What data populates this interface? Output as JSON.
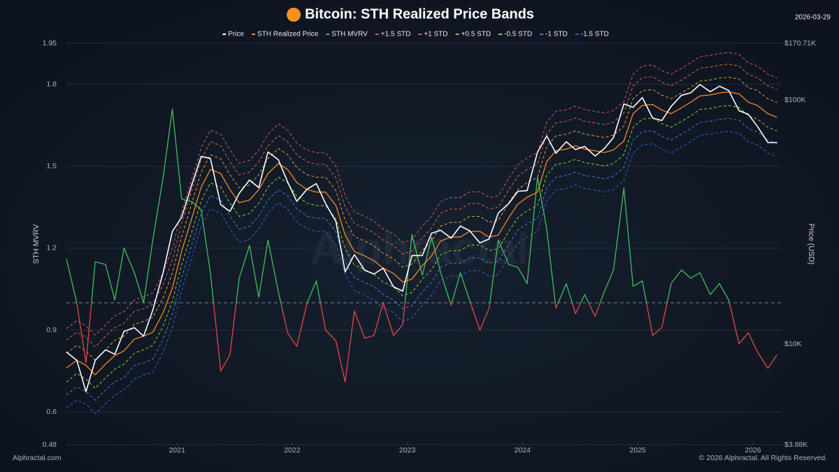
{
  "chart_data": {
    "type": "line",
    "title": "Bitcoin: STH Realized Price Bands",
    "date": "2026-03-29",
    "ylabel": "STH MVRV",
    "y2label": "Price (USD)",
    "watermark": "Alphractal",
    "source": "Alphractal.com",
    "copyright": "© 2026 Alphractal. All Rights Reserved.",
    "xlim": [
      2020.04,
      2026.25
    ],
    "xticks": [
      2021,
      2022,
      2023,
      2024,
      2025,
      2026
    ],
    "ylim": [
      0.48,
      1.95
    ],
    "yticks": [
      0.48,
      0.6,
      0.9,
      1.2,
      1.5,
      1.8,
      1.95
    ],
    "y2lim": [
      3880,
      170710
    ],
    "y2scale": "log",
    "y2ticks": [
      {
        "value": 3880,
        "label": "$3.88K"
      },
      {
        "value": 10000,
        "label": "$10K"
      },
      {
        "value": 100000,
        "label": "$100K"
      },
      {
        "value": 170710,
        "label": "$170.71K"
      }
    ],
    "grid": true,
    "legend": "top",
    "x": [
      2020.04,
      2020.13,
      2020.21,
      2020.29,
      2020.38,
      2020.46,
      2020.54,
      2020.63,
      2020.71,
      2020.79,
      2020.88,
      2020.96,
      2021.04,
      2021.13,
      2021.21,
      2021.29,
      2021.38,
      2021.46,
      2021.54,
      2021.63,
      2021.71,
      2021.79,
      2021.88,
      2021.96,
      2022.04,
      2022.13,
      2022.21,
      2022.29,
      2022.38,
      2022.46,
      2022.54,
      2022.63,
      2022.71,
      2022.79,
      2022.88,
      2022.96,
      2023.04,
      2023.13,
      2023.21,
      2023.29,
      2023.38,
      2023.46,
      2023.54,
      2023.63,
      2023.71,
      2023.79,
      2023.88,
      2023.96,
      2024.04,
      2024.13,
      2024.21,
      2024.29,
      2024.38,
      2024.46,
      2024.54,
      2024.63,
      2024.71,
      2024.79,
      2024.88,
      2024.96,
      2025.04,
      2025.13,
      2025.21,
      2025.29,
      2025.38,
      2025.46,
      2025.54,
      2025.63,
      2025.71,
      2025.79,
      2025.88,
      2025.96,
      2026.04,
      2026.13,
      2026.21
    ],
    "series": [
      {
        "name": "Price",
        "color": "#ffffff",
        "axis": "y2",
        "width": 1.6,
        "values": [
          9300,
          8600,
          6400,
          8600,
          9500,
          9100,
          11300,
          11700,
          10800,
          13800,
          19700,
          29000,
          33100,
          45200,
          58800,
          57700,
          37300,
          35000,
          41500,
          47100,
          43800,
          61300,
          57000,
          46300,
          38500,
          43200,
          45500,
          37700,
          31800,
          19800,
          23300,
          20100,
          19400,
          20500,
          17200,
          16500,
          23100,
          23100,
          28500,
          29300,
          27200,
          30500,
          29200,
          26000,
          27000,
          34500,
          37700,
          42300,
          42600,
          61200,
          71300,
          60600,
          67500,
          62700,
          64600,
          59000,
          63300,
          70200,
          96400,
          93400,
          102400,
          84400,
          82500,
          94200,
          104600,
          107100,
          115800,
          108200,
          114000,
          109500,
          90400,
          87500,
          78000,
          67000,
          67000
        ]
      },
      {
        "name": "STH Realized Price",
        "color": "#f5872a",
        "axis": "y2",
        "width": 1.3,
        "values": [
          8000,
          8600,
          8200,
          7500,
          8300,
          9000,
          9400,
          10500,
          10800,
          11200,
          13500,
          17000,
          24000,
          33000,
          44000,
          52000,
          50000,
          43000,
          38000,
          39000,
          43000,
          50000,
          55000,
          52000,
          46000,
          43000,
          42000,
          42000,
          37000,
          28000,
          24000,
          23000,
          22000,
          20500,
          19500,
          18000,
          18500,
          21000,
          23000,
          26500,
          27500,
          27500,
          29000,
          29000,
          27500,
          28000,
          33000,
          37500,
          40000,
          42000,
          56000,
          62000,
          63000,
          65000,
          63000,
          62000,
          61000,
          62500,
          68000,
          88000,
          95000,
          96000,
          91000,
          88000,
          93000,
          98000,
          104000,
          105000,
          107000,
          108000,
          106000,
          98000,
          95000,
          88000,
          85000
        ]
      },
      {
        "name": "STH MVRV",
        "color": "#5b8def",
        "color_above": "#3fbf5f",
        "color_below": "#e04848",
        "threshold": 1,
        "axis": "y",
        "width": 1.3,
        "values": [
          1.16,
          1.0,
          0.78,
          1.15,
          1.14,
          1.01,
          1.2,
          1.11,
          1.0,
          1.23,
          1.46,
          1.71,
          1.38,
          1.37,
          1.34,
          1.11,
          0.75,
          0.81,
          1.09,
          1.21,
          1.02,
          1.23,
          1.04,
          0.89,
          0.84,
          1.0,
          1.08,
          0.9,
          0.86,
          0.71,
          0.97,
          0.87,
          0.88,
          1.0,
          0.88,
          0.92,
          1.25,
          1.1,
          1.24,
          1.11,
          0.99,
          1.11,
          1.01,
          0.9,
          0.98,
          1.23,
          1.14,
          1.13,
          1.07,
          1.46,
          1.27,
          0.98,
          1.07,
          0.96,
          1.03,
          0.95,
          1.04,
          1.12,
          1.42,
          1.06,
          1.08,
          0.88,
          0.91,
          1.07,
          1.12,
          1.09,
          1.11,
          1.03,
          1.07,
          1.01,
          0.85,
          0.89,
          0.82,
          0.76,
          0.81
        ]
      },
      {
        "name": "+1.5 STD",
        "color": "#d9536f",
        "axis": "y2",
        "dashed": true,
        "width": 1,
        "values": [
          11600,
          12500,
          11900,
          10900,
          12000,
          13100,
          13600,
          15200,
          15700,
          16200,
          19600,
          24700,
          34800,
          47900,
          63800,
          75400,
          72500,
          62400,
          55100,
          56600,
          62400,
          72500,
          79800,
          75400,
          66700,
          62400,
          60900,
          60900,
          53700,
          40600,
          34800,
          33400,
          31900,
          29700,
          28300,
          26100,
          26800,
          30500,
          33400,
          38400,
          39900,
          39900,
          42100,
          42100,
          39900,
          40600,
          47900,
          54400,
          58000,
          60900,
          81200,
          89900,
          91400,
          94300,
          91400,
          89900,
          88500,
          90600,
          98600,
          127600,
          137800,
          139200,
          132000,
          127600,
          134900,
          142100,
          150800,
          152300,
          155200,
          156600,
          153700,
          142100,
          137800,
          127600,
          123300
        ]
      },
      {
        "name": "+1 STD",
        "color": "#e0604a",
        "axis": "y2",
        "dashed": true,
        "width": 1,
        "values": [
          10400,
          11200,
          10700,
          9750,
          10800,
          11700,
          12200,
          13650,
          14000,
          14600,
          17600,
          22100,
          31200,
          42900,
          57200,
          67600,
          65000,
          55900,
          49400,
          50700,
          55900,
          65000,
          71500,
          67600,
          59800,
          55900,
          54600,
          54600,
          48100,
          36400,
          31200,
          29900,
          28600,
          26700,
          25400,
          23400,
          24100,
          27300,
          29900,
          34500,
          35800,
          35800,
          37700,
          37700,
          35800,
          36400,
          42900,
          48800,
          52000,
          54600,
          72800,
          80600,
          81900,
          84500,
          81900,
          80600,
          79300,
          81300,
          88400,
          114400,
          123500,
          124800,
          118300,
          114400,
          120900,
          127400,
          135200,
          136500,
          139100,
          140400,
          137800,
          127400,
          123500,
          114400,
          110500
        ]
      },
      {
        "name": "+0.5 STD",
        "color": "#e8a23a",
        "axis": "y2",
        "dashed": true,
        "width": 1,
        "values": [
          9200,
          9900,
          9400,
          8600,
          9500,
          10400,
          10800,
          12100,
          12400,
          12900,
          15500,
          19600,
          27600,
          38000,
          50600,
          59800,
          57500,
          49500,
          43700,
          44900,
          49500,
          57500,
          63300,
          59800,
          52900,
          49500,
          48300,
          48300,
          42600,
          32200,
          27600,
          26500,
          25300,
          23600,
          22400,
          20700,
          21300,
          24200,
          26500,
          30500,
          31600,
          31600,
          33400,
          33400,
          31600,
          32200,
          38000,
          43100,
          46000,
          48300,
          64400,
          71300,
          72500,
          74800,
          72500,
          71300,
          70200,
          71900,
          78200,
          101200,
          109300,
          110400,
          104700,
          101200,
          107000,
          112700,
          119600,
          120800,
          123100,
          124200,
          121900,
          112700,
          109300,
          101200,
          97800
        ]
      },
      {
        "name": "-0.5 STD",
        "color": "#9acd32",
        "axis": "y2",
        "dashed": true,
        "width": 1,
        "values": [
          7000,
          7600,
          7200,
          6600,
          7300,
          7900,
          8300,
          9200,
          9500,
          9900,
          11900,
          15000,
          21100,
          29000,
          38700,
          45800,
          44000,
          37800,
          33400,
          34300,
          37800,
          44000,
          48400,
          45800,
          40500,
          37800,
          37000,
          37000,
          32600,
          24600,
          21100,
          20200,
          19400,
          18000,
          17200,
          15800,
          16300,
          18500,
          20200,
          23300,
          24200,
          24200,
          25500,
          25500,
          24200,
          24600,
          29000,
          33000,
          35200,
          37000,
          49300,
          54600,
          55400,
          57200,
          55400,
          54600,
          53700,
          55000,
          59800,
          77400,
          83600,
          84500,
          80100,
          77400,
          81800,
          86200,
          91500,
          92400,
          94200,
          95000,
          93300,
          86200,
          83600,
          77400,
          74800
        ]
      },
      {
        "name": "-1 STD",
        "color": "#3d7ee8",
        "axis": "y2",
        "dashed": true,
        "width": 1,
        "values": [
          6200,
          6700,
          6400,
          5900,
          6500,
          7020,
          7300,
          8200,
          8400,
          8700,
          10500,
          13300,
          18700,
          25700,
          34300,
          40600,
          39000,
          33500,
          29600,
          30400,
          33500,
          39000,
          42900,
          40600,
          35900,
          33500,
          32800,
          32800,
          28900,
          21800,
          18700,
          17900,
          17200,
          16000,
          15200,
          14000,
          14400,
          16400,
          17900,
          20700,
          21500,
          21500,
          22600,
          22600,
          21500,
          21800,
          25700,
          29300,
          31200,
          32800,
          43700,
          48400,
          49100,
          50700,
          49100,
          48400,
          47600,
          48800,
          53000,
          68600,
          74100,
          74900,
          71000,
          68600,
          72500,
          76400,
          81100,
          81900,
          83500,
          84200,
          82700,
          76400,
          74100,
          68600,
          66300
        ]
      },
      {
        "name": "-1.5 STD",
        "color": "#3a5fcf",
        "axis": "y2",
        "dashed": true,
        "width": 1,
        "values": [
          5500,
          5900,
          5700,
          5200,
          5700,
          6200,
          6500,
          7200,
          7500,
          7700,
          9300,
          11700,
          16600,
          22800,
          30400,
          35900,
          34500,
          29700,
          26200,
          26900,
          29700,
          34500,
          38000,
          35900,
          31700,
          29700,
          29000,
          29000,
          25500,
          19300,
          16600,
          15900,
          15200,
          14100,
          13500,
          12400,
          12800,
          14500,
          15900,
          18300,
          19000,
          19000,
          20000,
          20000,
          19000,
          19300,
          22800,
          25900,
          27600,
          29000,
          38600,
          42800,
          43500,
          44900,
          43500,
          42800,
          42100,
          43100,
          46900,
          60700,
          65600,
          66200,
          62800,
          60700,
          64200,
          67600,
          71800,
          72500,
          73800,
          74500,
          73100,
          67600,
          65600,
          60700,
          58700
        ]
      }
    ]
  }
}
